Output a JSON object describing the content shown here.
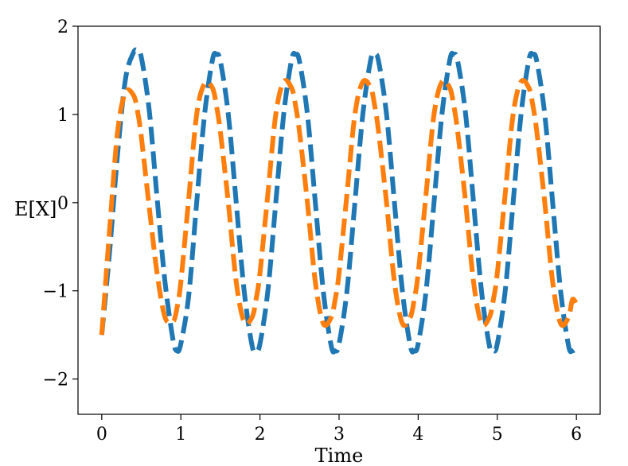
{
  "chart_data": {
    "type": "line",
    "title": "",
    "xlabel": "Time",
    "ylabel": "E[X]",
    "xlim": [
      -0.3,
      6.3
    ],
    "ylim": [
      -2.4,
      2.0
    ],
    "xticks": [
      0,
      1,
      2,
      3,
      4,
      5,
      6
    ],
    "yticks": [
      -2,
      -1,
      0,
      1,
      2
    ],
    "xtick_labels": [
      "0",
      "1",
      "2",
      "3",
      "4",
      "5",
      "6"
    ],
    "ytick_labels": [
      "−2",
      "−1",
      "0",
      "1",
      "2"
    ],
    "grid": false,
    "legend": "none",
    "x": [
      0.0,
      0.1,
      0.2,
      0.3,
      0.4,
      0.45,
      0.5,
      0.6,
      0.7,
      0.8,
      0.9,
      0.95,
      1.0,
      1.1,
      1.2,
      1.3,
      1.4,
      1.45,
      1.5,
      1.6,
      1.7,
      1.8,
      1.9,
      1.95,
      2.0,
      2.1,
      2.2,
      2.3,
      2.4,
      2.45,
      2.5,
      2.6,
      2.7,
      2.8,
      2.9,
      2.95,
      3.0,
      3.1,
      3.2,
      3.3,
      3.4,
      3.45,
      3.5,
      3.6,
      3.7,
      3.8,
      3.9,
      3.95,
      4.0,
      4.1,
      4.2,
      4.3,
      4.4,
      4.45,
      4.5,
      4.6,
      4.7,
      4.8,
      4.9,
      4.95,
      5.0,
      5.1,
      5.2,
      5.3,
      5.4,
      5.45,
      5.5,
      5.6,
      5.7,
      5.8,
      5.9,
      5.95,
      6.0
    ],
    "series": [
      {
        "color": "#1f77b4",
        "values": [
          -1.5,
          -0.55,
          0.55,
          1.4,
          1.7,
          1.72,
          1.65,
          1.05,
          0.05,
          -0.9,
          -1.55,
          -1.68,
          -1.6,
          -1.05,
          0.0,
          1.0,
          1.62,
          1.68,
          1.6,
          1.0,
          0.0,
          -1.0,
          -1.62,
          -1.68,
          -1.6,
          -1.0,
          0.0,
          1.0,
          1.62,
          1.68,
          1.6,
          1.0,
          0.0,
          -1.0,
          -1.62,
          -1.68,
          -1.6,
          -1.0,
          0.0,
          1.0,
          1.62,
          1.68,
          1.6,
          1.0,
          0.0,
          -1.0,
          -1.62,
          -1.68,
          -1.6,
          -1.0,
          0.0,
          1.0,
          1.62,
          1.68,
          1.6,
          1.0,
          0.0,
          -1.0,
          -1.62,
          -1.68,
          -1.6,
          -1.0,
          0.0,
          1.0,
          1.62,
          1.68,
          1.6,
          1.0,
          0.0,
          -1.0,
          -1.62,
          -1.68,
          -1.65
        ]
      },
      {
        "color": "#ff7f0e",
        "values": [
          -1.5,
          -0.3,
          0.8,
          1.25,
          1.22,
          1.05,
          0.75,
          -0.05,
          -0.8,
          -1.3,
          -1.35,
          -1.2,
          -0.9,
          0.05,
          1.0,
          1.35,
          1.3,
          1.1,
          0.8,
          0.0,
          -0.9,
          -1.35,
          -1.3,
          -1.1,
          -0.8,
          0.1,
          1.0,
          1.37,
          1.3,
          1.1,
          0.8,
          0.0,
          -0.9,
          -1.37,
          -1.3,
          -1.1,
          -0.8,
          0.1,
          1.0,
          1.37,
          1.3,
          1.1,
          0.8,
          0.0,
          -0.9,
          -1.37,
          -1.3,
          -1.1,
          -0.8,
          0.1,
          1.0,
          1.37,
          1.3,
          1.1,
          0.8,
          0.0,
          -0.9,
          -1.37,
          -1.3,
          -1.1,
          -0.8,
          0.1,
          1.0,
          1.37,
          1.3,
          1.1,
          0.8,
          0.0,
          -0.9,
          -1.37,
          -1.3,
          -1.1,
          -1.15
        ]
      }
    ]
  }
}
